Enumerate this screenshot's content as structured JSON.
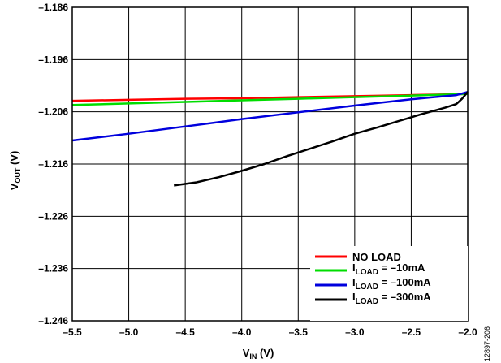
{
  "chart_data": {
    "type": "line",
    "xlabel": {
      "main": "V",
      "sub": "IN",
      "unit": " (V)"
    },
    "ylabel": {
      "main": "V",
      "sub": "OUT",
      "unit": " (V)"
    },
    "xlim": [
      -5.5,
      -2.0
    ],
    "ylim": [
      -1.246,
      -1.186
    ],
    "x_ticks": [
      -5.5,
      -5.0,
      -4.5,
      -4.0,
      -3.5,
      -3.0,
      -2.5,
      -2.0
    ],
    "x_tick_labels": [
      "–5.5",
      "–5.0",
      "–4.5",
      "–4.0",
      "–3.5",
      "–3.0",
      "–2.5",
      "–2.0"
    ],
    "y_ticks": [
      -1.186,
      -1.196,
      -1.206,
      -1.216,
      -1.226,
      -1.236,
      -1.246
    ],
    "y_tick_labels": [
      "–1.186",
      "–1.196",
      "–1.206",
      "–1.216",
      "–1.226",
      "–1.236",
      "–1.246"
    ],
    "grid": true,
    "legend_position": "bottom-right",
    "series": [
      {
        "legend": {
          "main": "NO LOAD",
          "sub": "",
          "rest": ""
        },
        "color": "#ff0000",
        "x": [
          -5.5,
          -5.0,
          -4.5,
          -4.0,
          -3.5,
          -3.0,
          -2.5,
          -2.0
        ],
        "y": [
          -1.2039,
          -1.2037,
          -1.2035,
          -1.2034,
          -1.2032,
          -1.203,
          -1.2028,
          -1.2026
        ]
      },
      {
        "legend": {
          "main": "I",
          "sub": "LOAD",
          "rest": " = –10mA"
        },
        "color": "#00dd00",
        "x": [
          -5.5,
          -5.0,
          -4.5,
          -4.0,
          -3.5,
          -3.0,
          -2.5,
          -2.0
        ],
        "y": [
          -1.2047,
          -1.2044,
          -1.2041,
          -1.2038,
          -1.2035,
          -1.2032,
          -1.2029,
          -1.2026
        ]
      },
      {
        "legend": {
          "main": "I",
          "sub": "LOAD",
          "rest": " = –100mA"
        },
        "color": "#0000dd",
        "x": [
          -5.5,
          -5.0,
          -4.5,
          -4.0,
          -3.5,
          -3.0,
          -2.5,
          -2.3,
          -2.1,
          -2.0
        ],
        "y": [
          -1.2115,
          -1.2102,
          -1.2088,
          -1.2074,
          -1.2061,
          -1.2048,
          -1.2036,
          -1.2032,
          -1.2028,
          -1.2022
        ]
      },
      {
        "legend": {
          "main": "I",
          "sub": "LOAD",
          "rest": " = –300mA"
        },
        "color": "#000000",
        "x": [
          -4.6,
          -4.4,
          -4.2,
          -4.0,
          -3.8,
          -3.6,
          -3.4,
          -3.2,
          -3.0,
          -2.8,
          -2.6,
          -2.4,
          -2.2,
          -2.1,
          -2.05,
          -2.0
        ],
        "y": [
          -1.2201,
          -1.2195,
          -1.2185,
          -1.2173,
          -1.216,
          -1.2145,
          -1.2131,
          -1.2117,
          -1.2102,
          -1.209,
          -1.2077,
          -1.2064,
          -1.2052,
          -1.2045,
          -1.2035,
          -1.2022
        ]
      }
    ]
  },
  "figure_id": "12897-206"
}
